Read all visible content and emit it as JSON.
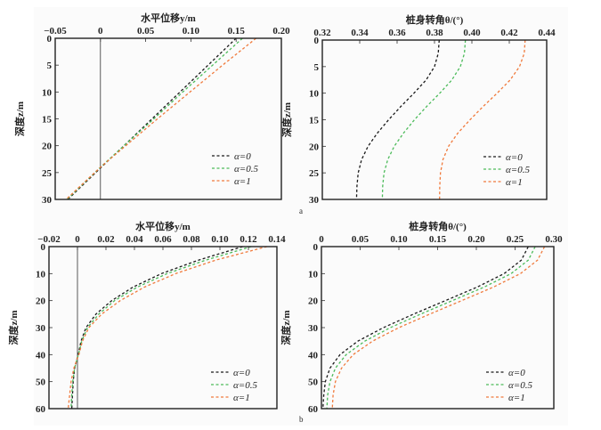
{
  "colors": {
    "alpha0": "#1a1a1a",
    "alpha05": "#4cbb5a",
    "alpha1": "#f07a3c"
  },
  "panel_labels": {
    "a": "a",
    "b": "b"
  },
  "chart_data": [
    {
      "id": "a-displacement",
      "type": "line",
      "panel": "a",
      "title": "",
      "xlabel": "水平位移y/m",
      "ylabel": "深度z/m",
      "xlim": [
        -0.05,
        0.2
      ],
      "ylim": [
        0,
        30
      ],
      "y_inverted": true,
      "x_axis_position": "top",
      "xticks": [
        -0.05,
        0,
        0.05,
        0.1,
        0.15,
        0.2
      ],
      "xtick_labels": [
        "−0.05",
        "0",
        "0.05",
        "0.10",
        "0.15",
        "0.20"
      ],
      "yticks": [
        0,
        5,
        10,
        15,
        20,
        25,
        30
      ],
      "ytick_labels": [
        "0",
        "5",
        "10",
        "15",
        "20",
        "25",
        "30"
      ],
      "zero_line": true,
      "legend": {
        "position": "bottom-right",
        "entries": [
          "α=0",
          "α=0.5",
          "α=1"
        ]
      },
      "series": [
        {
          "name": "α=0",
          "color_key": "alpha0",
          "z": [
            0,
            5,
            10,
            15,
            20,
            24,
            30
          ],
          "x": [
            0.15,
            0.119,
            0.088,
            0.057,
            0.026,
            0.001,
            -0.036
          ]
        },
        {
          "name": "α=0.5",
          "color_key": "alpha05",
          "z": [
            0,
            5,
            10,
            15,
            20,
            24,
            30
          ],
          "x": [
            0.157,
            0.124,
            0.091,
            0.059,
            0.026,
            0.0,
            -0.037
          ]
        },
        {
          "name": "α=1",
          "color_key": "alpha1",
          "z": [
            0,
            5,
            10,
            15,
            20,
            24,
            30
          ],
          "x": [
            0.172,
            0.135,
            0.099,
            0.063,
            0.028,
            0.0,
            -0.038
          ]
        }
      ]
    },
    {
      "id": "a-rotation",
      "type": "line",
      "panel": "a",
      "title": "",
      "xlabel": "桩身转角θ/(°)",
      "ylabel": "深度z/m",
      "xlim": [
        0.32,
        0.44
      ],
      "ylim": [
        0,
        30
      ],
      "y_inverted": true,
      "x_axis_position": "top",
      "xticks": [
        0.32,
        0.34,
        0.36,
        0.38,
        0.4,
        0.42,
        0.44
      ],
      "xtick_labels": [
        "0.32",
        "0.34",
        "0.36",
        "0.38",
        "0.40",
        "0.42",
        "0.44"
      ],
      "yticks": [
        0,
        5,
        10,
        15,
        20,
        25,
        30
      ],
      "ytick_labels": [
        "0",
        "5",
        "10",
        "15",
        "20",
        "25",
        "30"
      ],
      "zero_line": false,
      "legend": {
        "position": "bottom-right",
        "entries": [
          "α=0",
          "α=0.5",
          "α=1"
        ]
      },
      "series": [
        {
          "name": "α=0",
          "color_key": "alpha0",
          "z": [
            0,
            2.5,
            5,
            7.5,
            10,
            12.5,
            15,
            17.5,
            20,
            22.5,
            25,
            27.5,
            30
          ],
          "x": [
            0.3825,
            0.382,
            0.38,
            0.3755,
            0.369,
            0.362,
            0.3555,
            0.3495,
            0.3445,
            0.341,
            0.3392,
            0.3385,
            0.3383
          ]
        },
        {
          "name": "α=0.5",
          "color_key": "alpha05",
          "z": [
            0,
            2.5,
            5,
            7.5,
            10,
            12.5,
            15,
            17.5,
            20,
            22.5,
            25,
            27.5,
            30
          ],
          "x": [
            0.3965,
            0.396,
            0.3938,
            0.3893,
            0.3828,
            0.3758,
            0.3693,
            0.3635,
            0.3585,
            0.355,
            0.353,
            0.3523,
            0.3521
          ]
        },
        {
          "name": "α=1",
          "color_key": "alpha1",
          "z": [
            0,
            2.5,
            5,
            7.5,
            10,
            12.5,
            15,
            17.5,
            20,
            22.5,
            25,
            27.5,
            30
          ],
          "x": [
            0.4285,
            0.428,
            0.4255,
            0.4205,
            0.4135,
            0.406,
            0.399,
            0.3925,
            0.3875,
            0.3845,
            0.3832,
            0.3828,
            0.3827
          ]
        }
      ]
    },
    {
      "id": "b-displacement",
      "type": "line",
      "panel": "b",
      "title": "",
      "xlabel": "水平位移y/m",
      "ylabel": "深度z/m",
      "xlim": [
        -0.02,
        0.14
      ],
      "ylim": [
        0,
        60
      ],
      "y_inverted": true,
      "x_axis_position": "top",
      "xticks": [
        -0.02,
        0,
        0.02,
        0.04,
        0.06,
        0.08,
        0.1,
        0.12,
        0.14
      ],
      "xtick_labels": [
        "−0.02",
        "0",
        "0.02",
        "0.04",
        "0.06",
        "0.08",
        "0.10",
        "0.12",
        "0.14"
      ],
      "yticks": [
        0,
        10,
        20,
        30,
        40,
        50,
        60
      ],
      "ytick_labels": [
        "0",
        "10",
        "20",
        "30",
        "40",
        "50",
        "60"
      ],
      "zero_line": true,
      "legend": {
        "position": "bottom-right",
        "entries": [
          "α=0",
          "α=0.5",
          "α=1"
        ]
      },
      "series": [
        {
          "name": "α=0",
          "color_key": "alpha0",
          "z": [
            0,
            5,
            10,
            15,
            20,
            25,
            30,
            35,
            40,
            42,
            45,
            50,
            55,
            60
          ],
          "x": [
            0.116,
            0.085,
            0.059,
            0.039,
            0.024,
            0.013,
            0.006,
            0.0025,
            0.0005,
            -0.0005,
            -0.002,
            -0.003,
            -0.0035,
            -0.004
          ]
        },
        {
          "name": "α=0.5",
          "color_key": "alpha05",
          "z": [
            0,
            5,
            10,
            15,
            20,
            25,
            30,
            35,
            40,
            42,
            45,
            50,
            55,
            60
          ],
          "x": [
            0.122,
            0.09,
            0.063,
            0.042,
            0.026,
            0.015,
            0.007,
            0.003,
            0.0007,
            -0.0005,
            -0.002,
            -0.0033,
            -0.004,
            -0.0045
          ]
        },
        {
          "name": "α=1",
          "color_key": "alpha1",
          "z": [
            0,
            5,
            10,
            15,
            20,
            25,
            30,
            35,
            40,
            42,
            45,
            50,
            55,
            60
          ],
          "x": [
            0.133,
            0.097,
            0.069,
            0.047,
            0.03,
            0.017,
            0.008,
            0.0035,
            0.001,
            -0.0005,
            -0.0025,
            -0.0045,
            -0.0055,
            -0.0065
          ]
        }
      ]
    },
    {
      "id": "b-rotation",
      "type": "line",
      "panel": "b",
      "title": "",
      "xlabel": "桩身转角θ/(°)",
      "ylabel": "深度z/m",
      "xlim": [
        0,
        0.3
      ],
      "ylim": [
        0,
        60
      ],
      "y_inverted": true,
      "x_axis_position": "top",
      "xticks": [
        0,
        0.05,
        0.1,
        0.15,
        0.2,
        0.25,
        0.3
      ],
      "xtick_labels": [
        "0",
        "0.05",
        "0.10",
        "0.15",
        "0.20",
        "0.25",
        "0.30"
      ],
      "yticks": [
        0,
        10,
        20,
        30,
        40,
        50,
        60
      ],
      "ytick_labels": [
        "0",
        "10",
        "20",
        "30",
        "40",
        "50",
        "60"
      ],
      "zero_line": false,
      "legend": {
        "position": "bottom-right",
        "entries": [
          "α=0",
          "α=0.5",
          "α=1"
        ]
      },
      "series": [
        {
          "name": "α=0",
          "color_key": "alpha0",
          "z": [
            0,
            5,
            10,
            15,
            20,
            25,
            30,
            35,
            40,
            45,
            50,
            55,
            60
          ],
          "x": [
            0.267,
            0.258,
            0.236,
            0.201,
            0.16,
            0.119,
            0.08,
            0.047,
            0.024,
            0.011,
            0.005,
            0.003,
            0.002
          ]
        },
        {
          "name": "α=0.5",
          "color_key": "alpha05",
          "z": [
            0,
            5,
            10,
            15,
            20,
            25,
            30,
            35,
            40,
            45,
            50,
            55,
            60
          ],
          "x": [
            0.276,
            0.267,
            0.245,
            0.21,
            0.169,
            0.128,
            0.089,
            0.056,
            0.032,
            0.018,
            0.011,
            0.008,
            0.007
          ]
        },
        {
          "name": "α=1",
          "color_key": "alpha1",
          "z": [
            0,
            5,
            10,
            15,
            20,
            25,
            30,
            35,
            40,
            45,
            50,
            55,
            60
          ],
          "x": [
            0.288,
            0.279,
            0.257,
            0.222,
            0.181,
            0.14,
            0.1,
            0.066,
            0.041,
            0.026,
            0.018,
            0.015,
            0.014
          ]
        }
      ]
    }
  ]
}
